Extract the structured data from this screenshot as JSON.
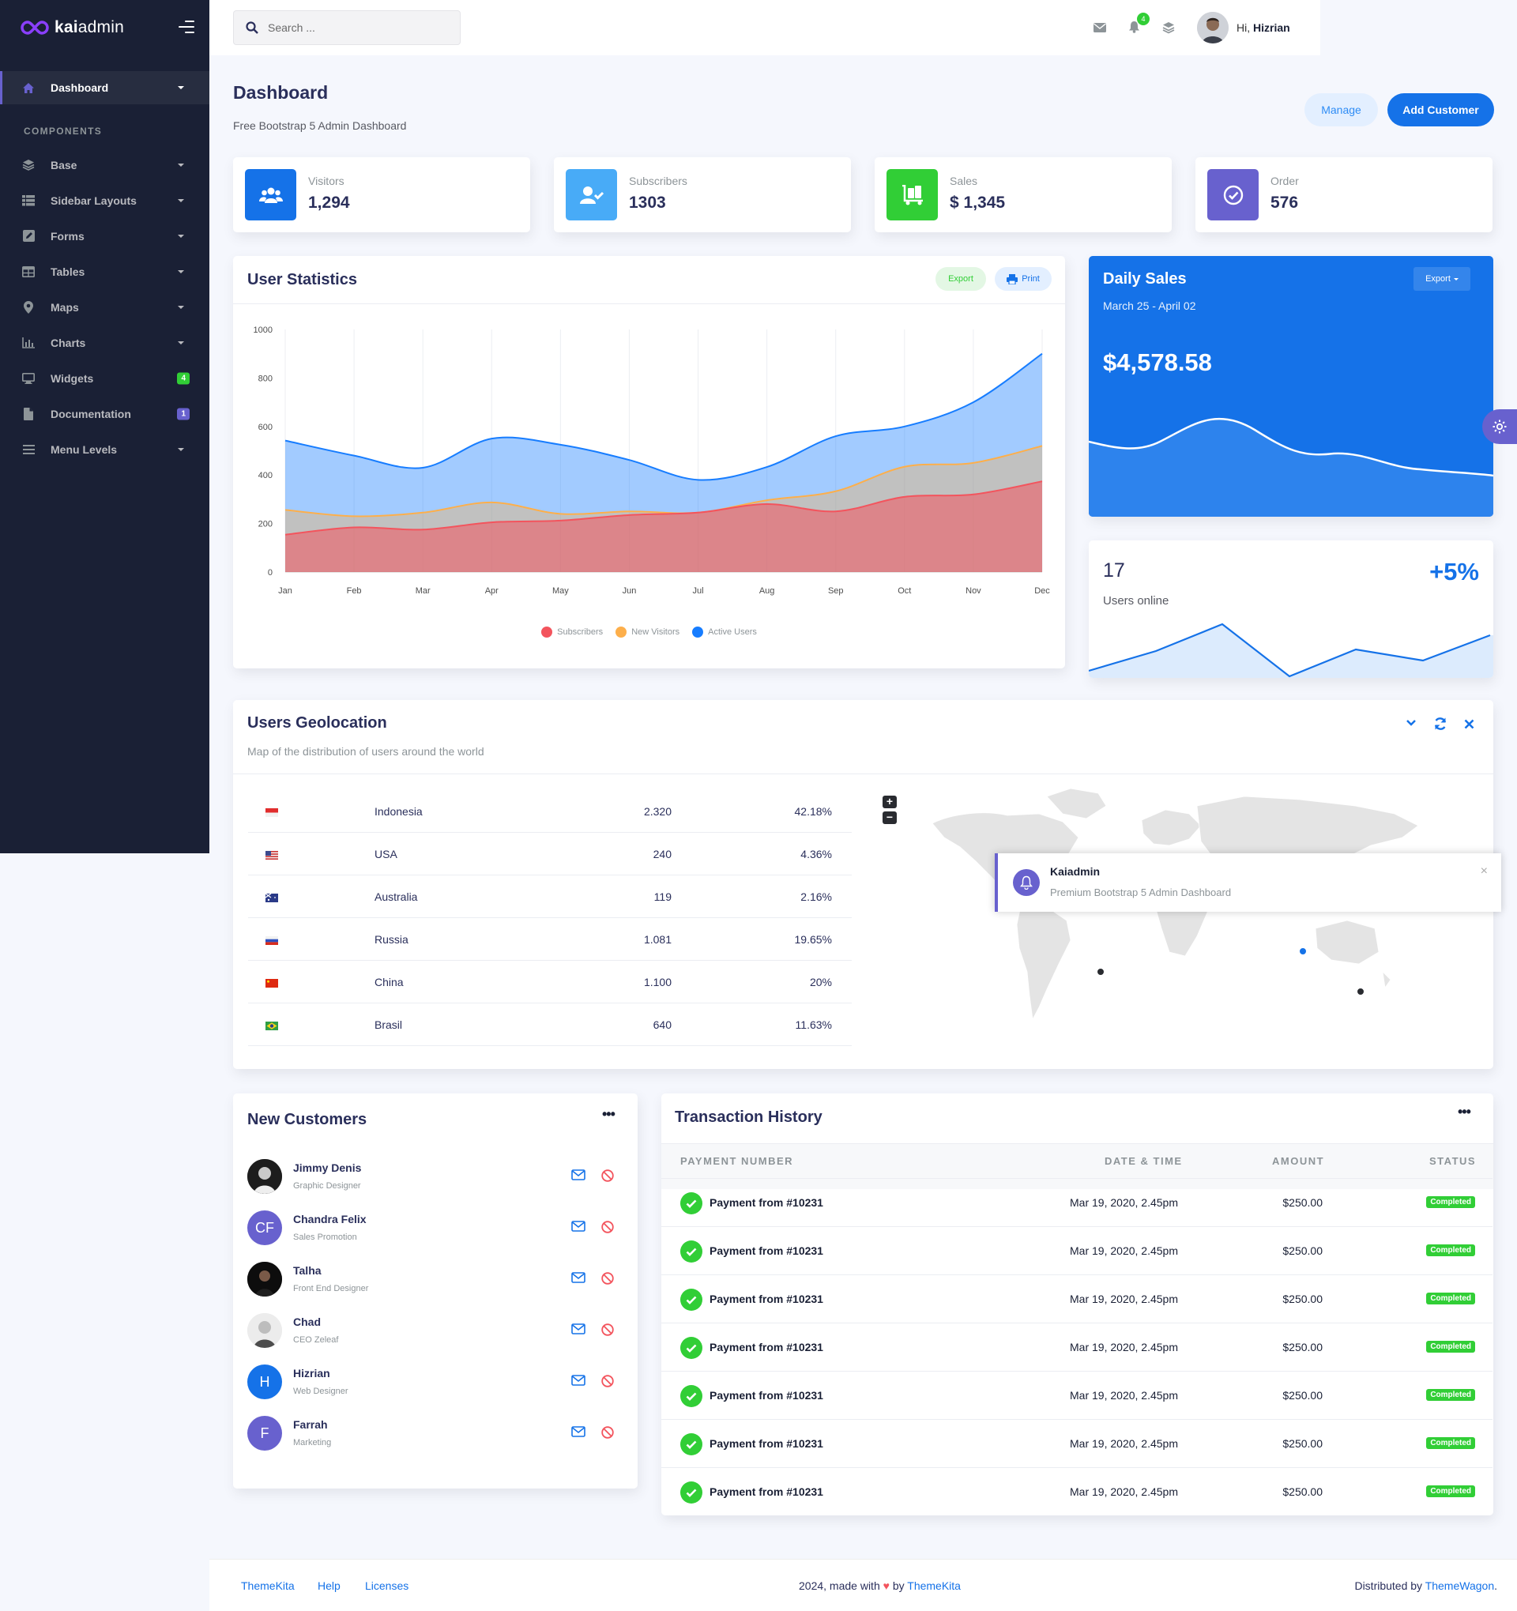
{
  "app": {
    "logo_bold": "kai",
    "logo_light": "admin"
  },
  "sidebar": {
    "dashboard": "Dashboard",
    "section": "COMPONENTS",
    "items": [
      {
        "label": "Base",
        "icon": "layers-icon"
      },
      {
        "label": "Sidebar Layouts",
        "icon": "th-list-icon"
      },
      {
        "label": "Forms",
        "icon": "pen-square-icon"
      },
      {
        "label": "Tables",
        "icon": "table-icon"
      },
      {
        "label": "Maps",
        "icon": "map-marker-icon"
      },
      {
        "label": "Charts",
        "icon": "bar-chart-icon"
      },
      {
        "label": "Widgets",
        "icon": "desktop-icon",
        "badge": "4"
      },
      {
        "label": "Documentation",
        "icon": "file-icon",
        "badge": "1"
      },
      {
        "label": "Menu Levels",
        "icon": "bars-icon"
      }
    ]
  },
  "topbar": {
    "search_placeholder": "Search ...",
    "notif_count": "4",
    "greeting": "Hi,",
    "user_name": "Hizrian"
  },
  "header": {
    "title": "Dashboard",
    "subtitle": "Free Bootstrap 5 Admin Dashboard",
    "manage": "Manage",
    "add_customer": "Add Customer"
  },
  "stats": [
    {
      "label": "Visitors",
      "value": "1,294",
      "color": "#1572e8"
    },
    {
      "label": "Subscribers",
      "value": "1303",
      "color": "#48abf7"
    },
    {
      "label": "Sales",
      "value": "$ 1,345",
      "color": "#31ce36"
    },
    {
      "label": "Order",
      "value": "576",
      "color": "#6861ce"
    }
  ],
  "user_stats": {
    "title": "User Statistics",
    "export": "Export",
    "print": "Print",
    "chart_data": {
      "type": "area",
      "categories": [
        "Jan",
        "Feb",
        "Mar",
        "Apr",
        "May",
        "Jun",
        "Jul",
        "Aug",
        "Sep",
        "Oct",
        "Nov",
        "Dec"
      ],
      "ylim": [
        0,
        1000
      ],
      "yticks": [
        "0",
        "200",
        "400",
        "600",
        "800",
        "1000"
      ],
      "series": [
        {
          "name": "Subscribers",
          "color": "#f3545d",
          "values": [
            154,
            184,
            175,
            205,
            212,
            235,
            245,
            280,
            250,
            310,
            320,
            374
          ]
        },
        {
          "name": "New Visitors",
          "color": "#fdaf4b",
          "values": [
            256,
            230,
            245,
            287,
            240,
            250,
            245,
            296,
            333,
            434,
            450,
            520
          ]
        },
        {
          "name": "Active Users",
          "color": "#177dff",
          "values": [
            542,
            480,
            430,
            550,
            525,
            462,
            380,
            433,
            560,
            600,
            700,
            900
          ]
        }
      ]
    }
  },
  "daily_sales": {
    "title": "Daily Sales",
    "range": "March 25 - April 02",
    "amount": "$4,578.58",
    "export": "Export"
  },
  "users_online": {
    "count": "17",
    "label": "Users online",
    "change": "+5%"
  },
  "geo": {
    "title": "Users Geolocation",
    "subtitle": "Map of the distribution of users around the world",
    "rows": [
      {
        "country": "Indonesia",
        "users": "2.320",
        "pct": "42.18%"
      },
      {
        "country": "USA",
        "users": "240",
        "pct": "4.36%"
      },
      {
        "country": "Australia",
        "users": "119",
        "pct": "2.16%"
      },
      {
        "country": "Russia",
        "users": "1.081",
        "pct": "19.65%"
      },
      {
        "country": "China",
        "users": "1.100",
        "pct": "20%"
      },
      {
        "country": "Brasil",
        "users": "640",
        "pct": "11.63%"
      }
    ],
    "zoom_in": "+",
    "zoom_out": "−"
  },
  "toast": {
    "title": "Kaiadmin",
    "message": "Premium Bootstrap 5 Admin Dashboard",
    "close": "×"
  },
  "customers": {
    "title": "New Customers",
    "items": [
      {
        "name": "Jimmy Denis",
        "role": "Graphic Designer",
        "initials": ""
      },
      {
        "name": "Chandra Felix",
        "role": "Sales Promotion",
        "initials": "CF"
      },
      {
        "name": "Talha",
        "role": "Front End Designer",
        "initials": ""
      },
      {
        "name": "Chad",
        "role": "CEO Zeleaf",
        "initials": ""
      },
      {
        "name": "Hizrian",
        "role": "Web Designer",
        "initials": "H"
      },
      {
        "name": "Farrah",
        "role": "Marketing",
        "initials": "F"
      }
    ]
  },
  "transactions": {
    "title": "Transaction History",
    "columns": [
      "PAYMENT NUMBER",
      "DATE & TIME",
      "AMOUNT",
      "STATUS"
    ],
    "rows": [
      {
        "label": "Payment from #10231",
        "date": "Mar 19, 2020, 2.45pm",
        "amount": "$250.00",
        "status": "Completed"
      },
      {
        "label": "Payment from #10231",
        "date": "Mar 19, 2020, 2.45pm",
        "amount": "$250.00",
        "status": "Completed"
      },
      {
        "label": "Payment from #10231",
        "date": "Mar 19, 2020, 2.45pm",
        "amount": "$250.00",
        "status": "Completed"
      },
      {
        "label": "Payment from #10231",
        "date": "Mar 19, 2020, 2.45pm",
        "amount": "$250.00",
        "status": "Completed"
      },
      {
        "label": "Payment from #10231",
        "date": "Mar 19, 2020, 2.45pm",
        "amount": "$250.00",
        "status": "Completed"
      },
      {
        "label": "Payment from #10231",
        "date": "Mar 19, 2020, 2.45pm",
        "amount": "$250.00",
        "status": "Completed"
      },
      {
        "label": "Payment from #10231",
        "date": "Mar 19, 2020, 2.45pm",
        "amount": "$250.00",
        "status": "Completed"
      }
    ]
  },
  "footer": {
    "links": [
      "ThemeKita",
      "Help",
      "Licenses"
    ],
    "made_prefix": "2024, made with",
    "made_by": "by",
    "made_link": "ThemeKita",
    "distributed": "Distributed by",
    "distributed_link": "ThemeWagon",
    "period": "."
  }
}
